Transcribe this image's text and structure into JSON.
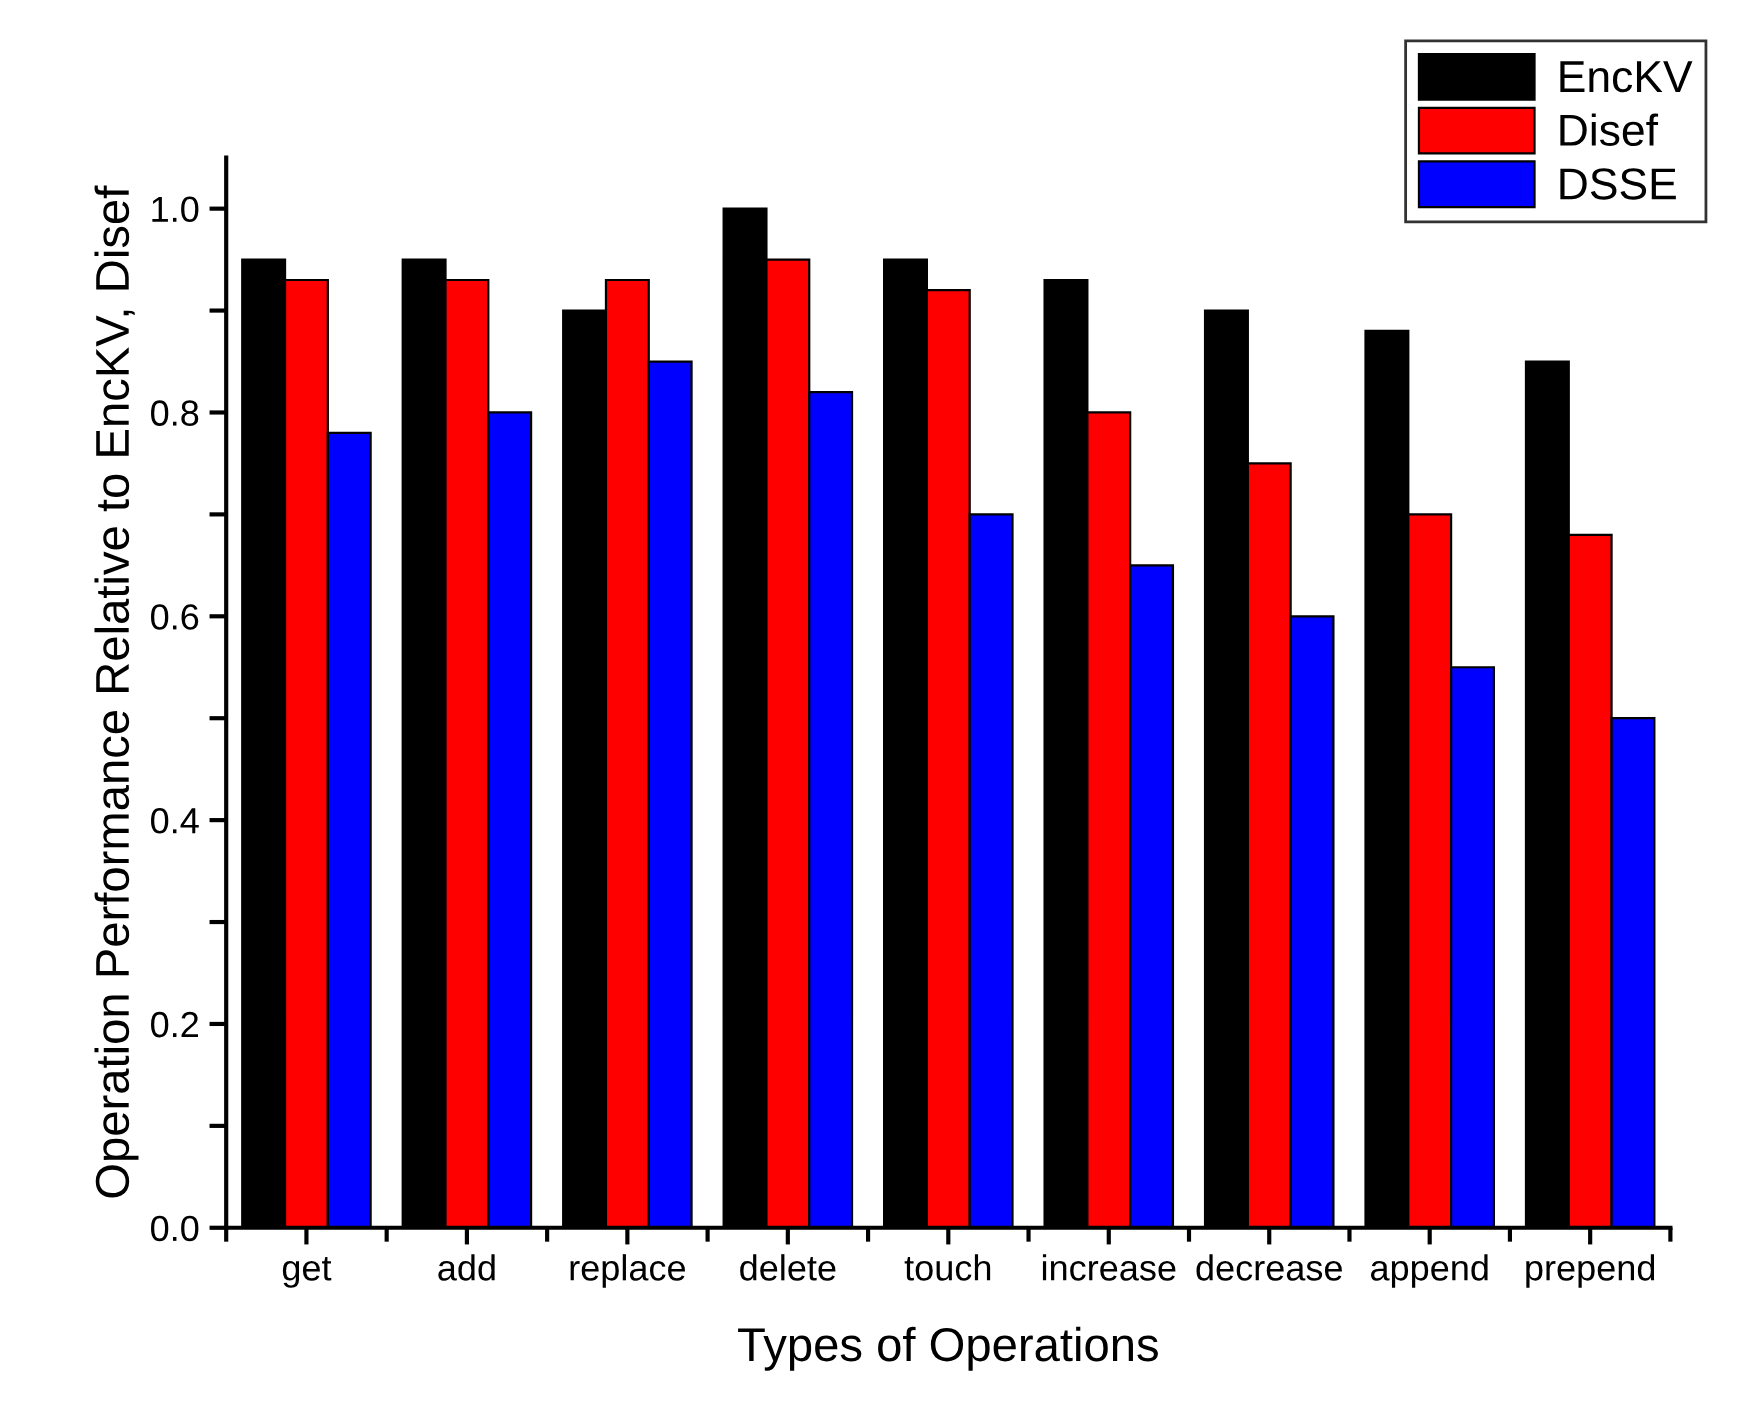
{
  "chart_data": {
    "type": "bar",
    "xlabel": "Types of Operations",
    "ylabel": "Operation Performance Relative to EncKV, Disef",
    "categories": [
      "get",
      "add",
      "replace",
      "delete",
      "touch",
      "increase",
      "decrease",
      "append",
      "prepend"
    ],
    "series": [
      {
        "name": "EncKV",
        "color": "#000000",
        "values": [
          0.95,
          0.95,
          0.9,
          1.0,
          0.95,
          0.93,
          0.9,
          0.88,
          0.85
        ]
      },
      {
        "name": "Disef",
        "color": "#ff0000",
        "values": [
          0.93,
          0.93,
          0.93,
          0.95,
          0.92,
          0.8,
          0.75,
          0.7,
          0.68
        ]
      },
      {
        "name": "DSSE",
        "color": "#0000ff",
        "values": [
          0.78,
          0.8,
          0.85,
          0.82,
          0.7,
          0.65,
          0.6,
          0.55,
          0.5
        ]
      }
    ],
    "ylim": [
      0,
      1.05
    ],
    "yticks": [
      {
        "value": 0,
        "label": "0.0"
      },
      {
        "value": 0.1,
        "label": null
      },
      0.2,
      {
        "value": 0.3,
        "label": null
      },
      0.4,
      {
        "value": 0.5,
        "label": null
      },
      0.6,
      {
        "value": 0.7,
        "label": null
      },
      0.8,
      {
        "value": 0.9,
        "label": null
      },
      {
        "value": 1,
        "label": "1.0"
      }
    ],
    "grid": false,
    "legend": "top right"
  }
}
